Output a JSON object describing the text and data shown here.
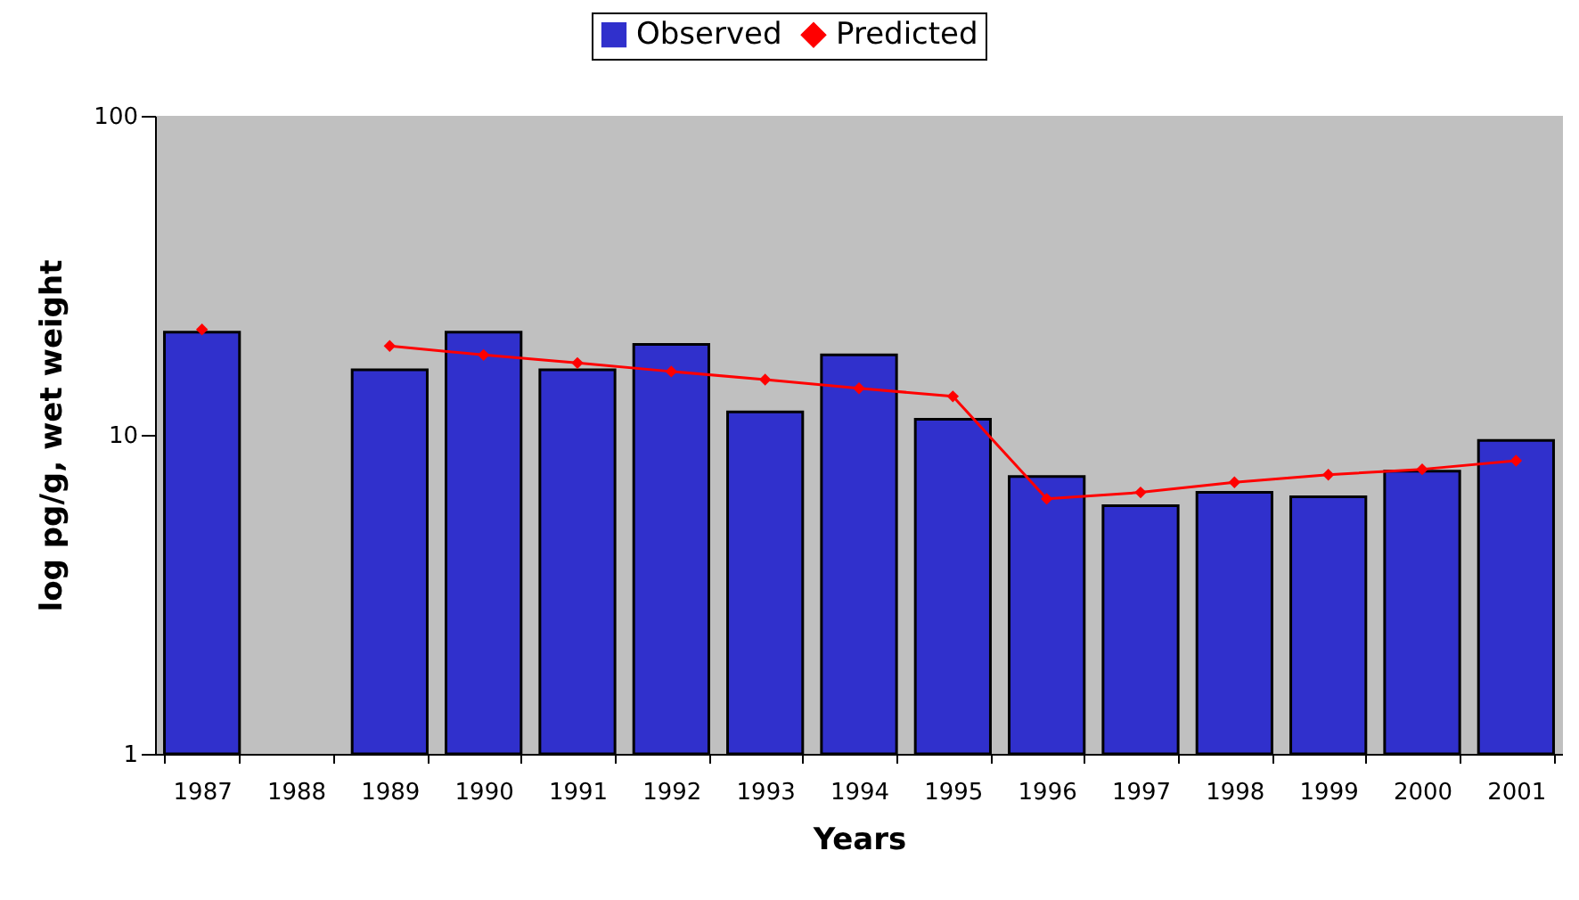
{
  "chart_data": {
    "type": "bar",
    "xlabel": "Years",
    "ylabel": "log pg/g, wet weight",
    "categories": [
      "1987",
      "1988",
      "1989",
      "1990",
      "1991",
      "1992",
      "1993",
      "1994",
      "1995",
      "1996",
      "1997",
      "1998",
      "1999",
      "2000",
      "2001"
    ],
    "series": [
      {
        "name": "Observed",
        "color": "#3030cc",
        "values": [
          21.0,
          null,
          16.0,
          21.0,
          16.0,
          19.2,
          11.8,
          17.8,
          11.2,
          7.4,
          6.0,
          6.6,
          6.4,
          7.7,
          9.6
        ]
      },
      {
        "name": "Predicted",
        "type": "line",
        "color": "#ff0000",
        "marker": "diamond",
        "values": [
          21.4,
          null,
          19.0,
          17.8,
          16.8,
          15.8,
          14.9,
          14.0,
          13.2,
          6.3,
          6.6,
          7.1,
          7.5,
          7.8,
          8.3
        ]
      }
    ],
    "log": true,
    "ylim": [
      1,
      100
    ],
    "yticks": [
      1,
      10,
      100
    ],
    "grid": false,
    "legend": "top"
  }
}
